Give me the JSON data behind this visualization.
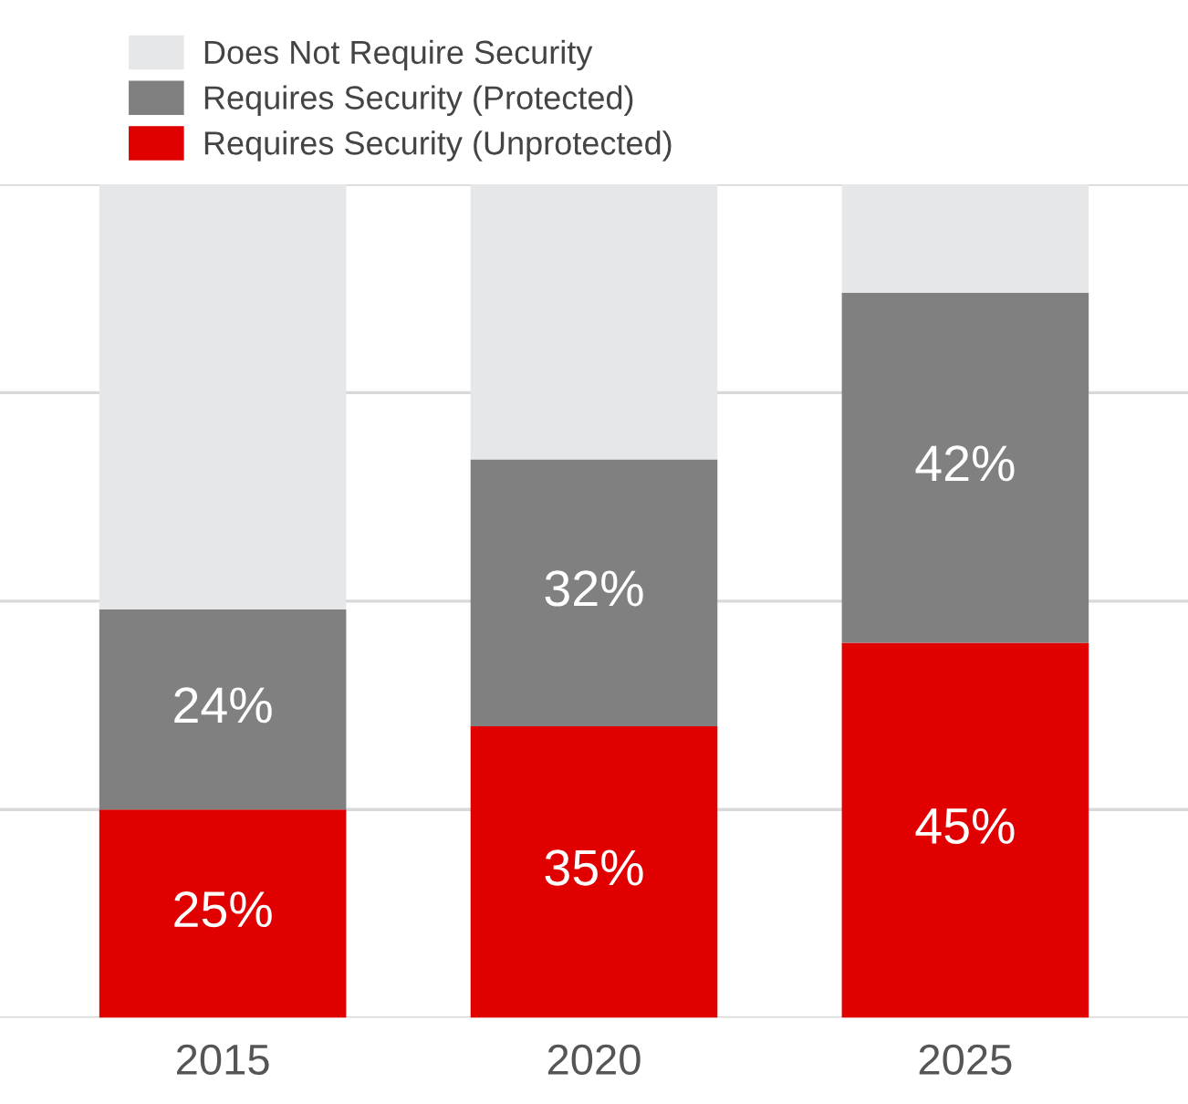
{
  "chart_data": {
    "type": "bar",
    "stacked": true,
    "categories": [
      "2015",
      "2020",
      "2025"
    ],
    "series": [
      {
        "name": "Requires Security (Unprotected)",
        "color": "#e00000",
        "values": [
          25,
          35,
          45
        ],
        "value_labels": [
          "25%",
          "35%",
          "45%"
        ]
      },
      {
        "name": "Requires Security (Protected)",
        "color": "#808080",
        "values": [
          24,
          32,
          42
        ],
        "value_labels": [
          "24%",
          "32%",
          "42%"
        ]
      },
      {
        "name": "Does Not Require Security",
        "color": "#e6e7e9",
        "values": [
          51,
          33,
          13
        ],
        "value_labels": [
          null,
          null,
          null
        ]
      }
    ],
    "ylim": [
      0,
      100
    ],
    "yticks": [
      {
        "value": 0,
        "label": null
      },
      {
        "value": 25,
        "label": null
      },
      {
        "value": 50,
        "label": null
      },
      {
        "value": 75,
        "label": null
      },
      {
        "value": 100,
        "label": null
      }
    ],
    "tick_labels": "x",
    "grid": "y",
    "legend": "top left"
  }
}
